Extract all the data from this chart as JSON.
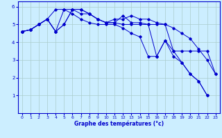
{
  "xlabel": "Graphe des températures (°c)",
  "bg_color": "#cceeff",
  "grid_color": "#aacccc",
  "line_color": "#0000cc",
  "xlim": [
    -0.5,
    23.5
  ],
  "ylim": [
    0,
    6.3
  ],
  "xticks": [
    0,
    1,
    2,
    3,
    4,
    5,
    6,
    7,
    8,
    9,
    10,
    11,
    12,
    13,
    14,
    15,
    16,
    17,
    18,
    19,
    20,
    21,
    22,
    23
  ],
  "yticks": [
    1,
    2,
    3,
    4,
    5,
    6
  ],
  "series": [
    {
      "x": [
        0,
        1,
        2,
        3,
        4,
        5,
        6,
        7,
        8,
        9,
        10,
        11,
        12,
        13,
        14,
        15,
        16,
        17,
        18,
        19,
        20,
        21,
        22,
        23
      ],
      "y": [
        4.6,
        4.7,
        5.0,
        5.3,
        4.6,
        5.0,
        5.85,
        5.85,
        5.6,
        5.3,
        5.1,
        5.3,
        5.3,
        5.5,
        5.3,
        5.3,
        5.1,
        5.0,
        3.5,
        3.5,
        3.5,
        3.5,
        3.5,
        2.2
      ]
    },
    {
      "x": [
        0,
        1,
        2,
        3,
        4,
        5,
        6,
        7,
        8,
        9,
        10,
        11,
        12,
        13,
        14,
        15,
        16,
        17,
        18,
        19,
        20,
        21,
        22,
        23
      ],
      "y": [
        4.6,
        4.7,
        5.0,
        5.3,
        4.6,
        5.0,
        5.85,
        5.85,
        5.6,
        5.3,
        5.1,
        5.1,
        5.0,
        5.0,
        5.0,
        5.0,
        5.0,
        5.0,
        4.8,
        4.5,
        4.2,
        3.6,
        3.0,
        2.2
      ]
    },
    {
      "x": [
        0,
        1,
        2,
        3,
        4,
        5,
        6,
        7,
        8,
        9,
        10,
        11,
        12,
        13,
        14,
        15,
        16,
        17,
        18,
        19,
        20,
        21,
        22,
        23
      ],
      "y": [
        4.6,
        4.7,
        5.0,
        5.3,
        5.85,
        5.85,
        5.85,
        5.6,
        5.6,
        5.3,
        5.1,
        5.1,
        5.5,
        5.1,
        5.1,
        5.0,
        3.2,
        4.1,
        3.2,
        2.85,
        2.2,
        1.8,
        1.0,
        null
      ]
    },
    {
      "x": [
        0,
        1,
        2,
        3,
        4,
        5,
        6,
        7,
        8,
        9,
        10,
        11,
        12,
        13,
        14,
        15,
        16,
        17,
        18,
        19,
        20,
        21,
        22,
        23
      ],
      "y": [
        4.6,
        4.7,
        5.0,
        5.3,
        4.6,
        5.85,
        5.6,
        5.3,
        5.1,
        5.0,
        5.0,
        5.0,
        4.8,
        4.5,
        4.3,
        3.2,
        3.2,
        4.1,
        3.5,
        2.85,
        2.2,
        1.8,
        1.0,
        null
      ]
    }
  ]
}
